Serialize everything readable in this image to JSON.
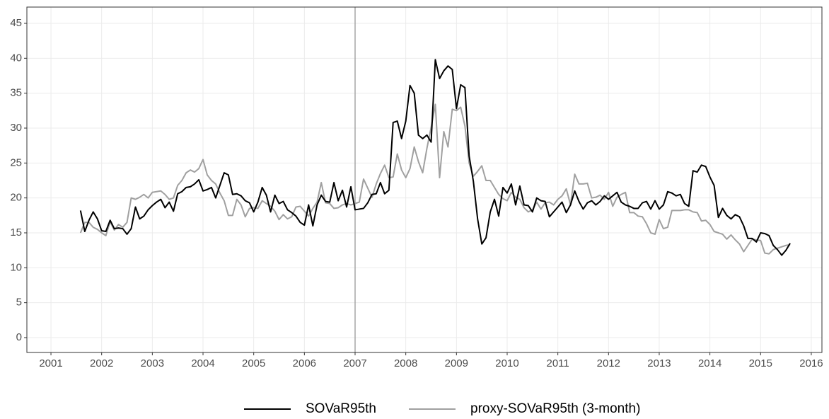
{
  "chart_data": {
    "type": "line",
    "x": [
      2001.583,
      2001.667,
      2001.75,
      2001.833,
      2001.917,
      2002,
      2002.083,
      2002.167,
      2002.25,
      2002.333,
      2002.417,
      2002.5,
      2002.583,
      2002.667,
      2002.75,
      2002.833,
      2002.917,
      2003,
      2003.083,
      2003.167,
      2003.25,
      2003.333,
      2003.417,
      2003.5,
      2003.583,
      2003.667,
      2003.75,
      2003.833,
      2003.917,
      2004,
      2004.083,
      2004.167,
      2004.25,
      2004.333,
      2004.417,
      2004.5,
      2004.583,
      2004.667,
      2004.75,
      2004.833,
      2004.917,
      2005,
      2005.083,
      2005.167,
      2005.25,
      2005.333,
      2005.417,
      2005.5,
      2005.583,
      2005.667,
      2005.75,
      2005.833,
      2005.917,
      2006,
      2006.083,
      2006.167,
      2006.25,
      2006.333,
      2006.417,
      2006.5,
      2006.583,
      2006.667,
      2006.75,
      2006.833,
      2006.917,
      2007,
      2007.083,
      2007.167,
      2007.25,
      2007.333,
      2007.417,
      2007.5,
      2007.583,
      2007.667,
      2007.75,
      2007.833,
      2007.917,
      2008,
      2008.083,
      2008.167,
      2008.25,
      2008.333,
      2008.417,
      2008.5,
      2008.583,
      2008.667,
      2008.75,
      2008.833,
      2008.917,
      2009,
      2009.083,
      2009.167,
      2009.25,
      2009.333,
      2009.417,
      2009.5,
      2009.583,
      2009.667,
      2009.75,
      2009.833,
      2009.917,
      2010,
      2010.083,
      2010.167,
      2010.25,
      2010.333,
      2010.417,
      2010.5,
      2010.583,
      2010.667,
      2010.75,
      2010.833,
      2010.917,
      2011,
      2011.083,
      2011.167,
      2011.25,
      2011.333,
      2011.417,
      2011.5,
      2011.583,
      2011.667,
      2011.75,
      2011.833,
      2011.917,
      2012,
      2012.083,
      2012.167,
      2012.25,
      2012.333,
      2012.417,
      2012.5,
      2012.583,
      2012.667,
      2012.75,
      2012.833,
      2012.917,
      2013,
      2013.083,
      2013.167,
      2013.25,
      2013.333,
      2013.417,
      2013.5,
      2013.583,
      2013.667,
      2013.75,
      2013.833,
      2013.917,
      2014,
      2014.083,
      2014.167,
      2014.25,
      2014.333,
      2014.417,
      2014.5,
      2014.583,
      2014.667,
      2014.75,
      2014.833,
      2014.917,
      2015,
      2015.083,
      2015.167,
      2015.25,
      2015.333,
      2015.417,
      2015.5,
      2015.583
    ],
    "series": [
      {
        "name": "SOVaR95th",
        "color": "#000000",
        "values": [
          18.2,
          15.2,
          16.8,
          18.0,
          17.0,
          15.3,
          15.2,
          16.8,
          15.6,
          15.7,
          15.6,
          14.8,
          15.6,
          18.7,
          17.0,
          17.4,
          18.3,
          18.9,
          19.4,
          19.8,
          18.6,
          19.4,
          18.1,
          20.6,
          20.9,
          21.5,
          21.6,
          22.0,
          22.6,
          21.0,
          21.2,
          21.5,
          20.0,
          21.8,
          23.6,
          23.3,
          20.5,
          20.6,
          20.3,
          19.6,
          19.3,
          18.0,
          19.4,
          21.5,
          20.4,
          18.0,
          20.4,
          19.2,
          19.5,
          18.3,
          17.9,
          17.4,
          16.5,
          16.1,
          19.0,
          16.0,
          19.0,
          20.4,
          19.5,
          19.4,
          22.2,
          19.6,
          21.1,
          18.7,
          21.6,
          18.3,
          18.4,
          18.5,
          19.3,
          20.5,
          20.6,
          22.2,
          20.6,
          21.1,
          30.8,
          31.0,
          28.5,
          31.0,
          36.1,
          35.0,
          29.0,
          28.5,
          29.0,
          28.0,
          39.8,
          37.1,
          38.2,
          38.9,
          38.4,
          32.8,
          36.2,
          35.8,
          26.0,
          22.4,
          17.0,
          13.4,
          14.3,
          18.0,
          19.8,
          17.4,
          21.5,
          20.7,
          22.0,
          19.0,
          21.7,
          19.0,
          18.9,
          18.0,
          20.0,
          19.6,
          19.5,
          17.3,
          18.0,
          18.7,
          19.4,
          17.9,
          19.0,
          21.0,
          19.5,
          18.4,
          19.3,
          19.6,
          19.0,
          19.5,
          20.3,
          19.8,
          20.3,
          20.8,
          19.4,
          19.0,
          18.8,
          18.5,
          18.5,
          19.3,
          19.5,
          18.4,
          19.6,
          18.4,
          19.0,
          20.9,
          20.7,
          20.3,
          20.5,
          19.2,
          18.8,
          23.9,
          23.7,
          24.7,
          24.5,
          23.0,
          21.8,
          17.2,
          18.5,
          17.5,
          17.0,
          17.6,
          17.3,
          16.0,
          14.2,
          14.2,
          13.7,
          15.0,
          14.9,
          14.6,
          13.2,
          12.6,
          11.8,
          12.5,
          13.5
        ]
      },
      {
        "name": "proxy-SOVaR95th (3-month)",
        "color": "#a0a0a0",
        "values": [
          15.0,
          16.5,
          16.5,
          15.8,
          15.5,
          15.0,
          14.6,
          16.6,
          15.4,
          16.2,
          15.8,
          16.5,
          20.0,
          19.8,
          20.1,
          20.5,
          20.0,
          20.8,
          20.9,
          21.0,
          20.5,
          19.8,
          20.0,
          21.8,
          22.5,
          23.6,
          24.0,
          23.7,
          24.2,
          25.5,
          23.3,
          22.5,
          22.0,
          20.7,
          19.6,
          17.5,
          17.5,
          19.8,
          19.0,
          17.3,
          18.5,
          18.6,
          18.5,
          19.6,
          19.2,
          18.8,
          18.1,
          16.9,
          17.6,
          17.0,
          17.3,
          18.7,
          18.8,
          18.1,
          17.4,
          18.5,
          19.4,
          22.2,
          19.3,
          19.2,
          18.5,
          18.6,
          19.0,
          19.2,
          19.0,
          19.2,
          19.4,
          22.7,
          21.4,
          20.1,
          22.0,
          23.5,
          24.7,
          22.9,
          23.0,
          26.3,
          24.0,
          22.9,
          24.2,
          27.3,
          25.2,
          23.6,
          27.1,
          30.1,
          33.4,
          22.9,
          29.5,
          27.3,
          32.7,
          32.5,
          33.0,
          30.3,
          25.0,
          23.1,
          23.8,
          24.6,
          22.5,
          22.5,
          21.5,
          20.5,
          19.9,
          19.6,
          20.8,
          20.1,
          19.8,
          18.6,
          18.0,
          18.3,
          19.4,
          18.4,
          19.3,
          19.4,
          19.0,
          19.8,
          20.3,
          21.3,
          19.0,
          23.4,
          22.0,
          22.0,
          22.1,
          20.0,
          20.1,
          20.4,
          19.8,
          20.8,
          18.8,
          20.1,
          20.5,
          20.8,
          17.9,
          17.9,
          17.4,
          17.3,
          16.3,
          15.0,
          14.8,
          16.9,
          15.6,
          15.8,
          18.2,
          18.2,
          18.2,
          18.3,
          18.3,
          18.0,
          17.9,
          16.7,
          16.8,
          16.2,
          15.2,
          15.0,
          14.8,
          14.1,
          14.7,
          14.0,
          13.4,
          12.3,
          13.2,
          14.1,
          14.0,
          13.9,
          12.1,
          12.0,
          12.6,
          12.8,
          13.0,
          13.2,
          13.3
        ]
      }
    ],
    "xlim": [
      2000.525,
      2016.21
    ],
    "xticks": [
      2001,
      2002,
      2003,
      2004,
      2005,
      2006,
      2007,
      2008,
      2009,
      2010,
      2011,
      2012,
      2013,
      2014,
      2015,
      2016
    ],
    "ylim": [
      -2.13,
      47.33
    ],
    "yticks": [
      0,
      5,
      10,
      15,
      20,
      25,
      30,
      35,
      40,
      45
    ],
    "grid": true,
    "vline": 2007,
    "legend": "bottom"
  }
}
